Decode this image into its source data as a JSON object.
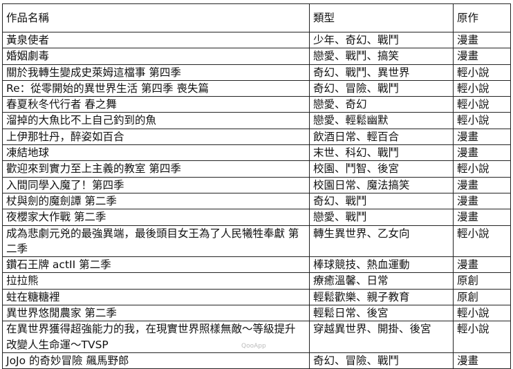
{
  "headers": [
    "作品名稱",
    "類型",
    "原作"
  ],
  "rows": [
    [
      "黃泉使者",
      "少年、奇幻、戰鬥",
      "漫畫"
    ],
    [
      "婚姻劇毒",
      "戀愛、戰鬥、搞笑",
      "漫畫"
    ],
    [
      "關於我轉生變成史萊姆這檔事 第四季",
      "奇幻、戰鬥、異世界",
      "輕小說"
    ],
    [
      "Re：從零開始的異世界生活 第四季 喪失篇",
      "奇幻、冒險、戰鬥",
      "輕小說"
    ],
    [
      "春夏秋冬代行者 春之舞",
      "戀愛、奇幻",
      "輕小說"
    ],
    [
      "溜掉的大魚比不上自己釣到的魚",
      "戀愛、輕鬆幽默",
      "輕小說"
    ],
    [
      "上伊那牡丹，醉姿如百合",
      "飲酒日常、輕百合",
      "漫畫"
    ],
    [
      "凍結地球",
      "末世、科幻、戰鬥",
      "漫畫"
    ],
    [
      "歡迎來到實力至上主義的教室 第四季",
      "校園、鬥智、後宮",
      "輕小說"
    ],
    [
      "入間同學入魔了！第四季",
      "校園日常、魔法搞笑",
      "漫畫"
    ],
    [
      "杖與劍的魔劍譚 第二季",
      "奇幻、戰鬥",
      "漫畫"
    ],
    [
      "夜櫻家大作戰 第二季",
      "戀愛、戰鬥",
      "漫畫"
    ],
    [
      "成為悲劇元兇的最強異端，最後頭目女王為了人民犧牲奉獻 第二季",
      "轉生異世界、乙女向",
      "輕小說"
    ],
    [
      "鑽石王牌 actII 第二季",
      "棒球競技、熱血運動",
      "漫畫"
    ],
    [
      "拉拉熊",
      "療癒溫馨、日常",
      "原創"
    ],
    [
      "蛀在糖糖裡",
      "輕鬆歡樂、親子教育",
      "原創"
    ],
    [
      "異世界悠閒農家 第二季",
      "輕鬆日常、後宮",
      "輕小說"
    ],
    [
      "在異世界獲得超強能力的我，在現實世界照樣無敵～等級提升改變人生命運～TVSP",
      "穿越異世界、開掛、後宮",
      "輕小說"
    ],
    [
      "JoJo 的奇妙冒險 飆馬野郎",
      "奇幻、冒險、戰鬥",
      "漫畫"
    ]
  ],
  "watermark": "QooApp"
}
